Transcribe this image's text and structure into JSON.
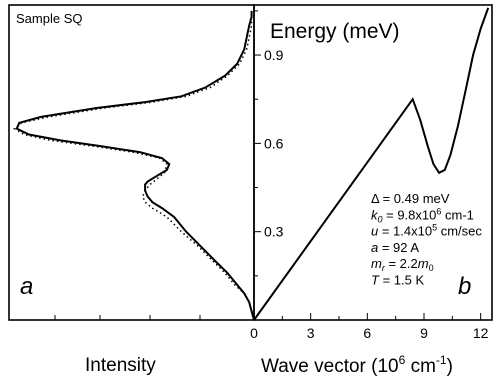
{
  "chart_data": [
    {
      "type": "line",
      "panel": "left",
      "sample_label": "Sample SQ",
      "panel_letter": "a",
      "xlabel": "Intensity",
      "ylabel": "",
      "ylim": [
        0.0,
        1.07
      ],
      "series": [
        {
          "style": "solid",
          "points": [
            [
              0.0,
              0.0
            ],
            [
              0.01,
              0.03
            ],
            [
              0.02,
              0.06
            ],
            [
              0.04,
              0.09
            ],
            [
              0.07,
              0.12
            ],
            [
              0.11,
              0.16
            ],
            [
              0.16,
              0.2
            ],
            [
              0.22,
              0.25
            ],
            [
              0.28,
              0.3
            ],
            [
              0.33,
              0.35
            ],
            [
              0.38,
              0.38
            ],
            [
              0.42,
              0.4
            ],
            [
              0.44,
              0.42
            ],
            [
              0.45,
              0.44
            ],
            [
              0.45,
              0.46
            ],
            [
              0.44,
              0.47
            ],
            [
              0.4,
              0.49
            ],
            [
              0.36,
              0.51
            ],
            [
              0.35,
              0.53
            ],
            [
              0.38,
              0.55
            ],
            [
              0.47,
              0.57
            ],
            [
              0.63,
              0.59
            ],
            [
              0.8,
              0.61
            ],
            [
              0.93,
              0.63
            ],
            [
              0.98,
              0.65
            ],
            [
              0.97,
              0.67
            ],
            [
              0.88,
              0.69
            ],
            [
              0.65,
              0.72
            ],
            [
              0.45,
              0.74
            ],
            [
              0.3,
              0.76
            ],
            [
              0.2,
              0.79
            ],
            [
              0.12,
              0.83
            ],
            [
              0.07,
              0.87
            ],
            [
              0.04,
              0.92
            ],
            [
              0.03,
              0.96
            ],
            [
              0.02,
              1.0
            ],
            [
              0.01,
              1.03
            ],
            [
              0.01,
              1.05
            ]
          ]
        },
        {
          "style": "dotted",
          "points": [
            [
              0.0,
              0.0
            ],
            [
              0.01,
              0.03
            ],
            [
              0.02,
              0.06
            ],
            [
              0.04,
              0.09
            ],
            [
              0.08,
              0.12
            ],
            [
              0.12,
              0.16
            ],
            [
              0.17,
              0.2
            ],
            [
              0.23,
              0.25
            ],
            [
              0.3,
              0.3
            ],
            [
              0.36,
              0.35
            ],
            [
              0.42,
              0.38
            ],
            [
              0.45,
              0.4
            ],
            [
              0.46,
              0.42
            ],
            [
              0.45,
              0.44
            ],
            [
              0.43,
              0.46
            ],
            [
              0.4,
              0.48
            ],
            [
              0.37,
              0.5
            ],
            [
              0.36,
              0.53
            ],
            [
              0.39,
              0.55
            ],
            [
              0.5,
              0.57
            ],
            [
              0.66,
              0.59
            ],
            [
              0.84,
              0.61
            ],
            [
              0.95,
              0.63
            ],
            [
              0.99,
              0.65
            ],
            [
              0.96,
              0.67
            ],
            [
              0.85,
              0.69
            ],
            [
              0.62,
              0.72
            ],
            [
              0.42,
              0.74
            ],
            [
              0.28,
              0.76
            ],
            [
              0.18,
              0.79
            ],
            [
              0.11,
              0.83
            ],
            [
              0.06,
              0.87
            ],
            [
              0.03,
              0.92
            ],
            [
              0.02,
              0.96
            ],
            [
              0.01,
              1.0
            ],
            [
              0.01,
              1.03
            ]
          ]
        }
      ]
    },
    {
      "type": "line",
      "panel": "right",
      "title": "Energy (meV)",
      "panel_letter": "b",
      "xlabel_main": "Wave vector (10",
      "xlabel_sup": "6",
      "xlabel_mid": " cm",
      "xlabel_sup2": "-1",
      "xlabel_end": ")",
      "xlim": [
        0,
        12.6
      ],
      "ylim": [
        0.0,
        1.07
      ],
      "xticks": [
        "0",
        "3",
        "6",
        "9",
        "12"
      ],
      "yticks": [
        "0.3",
        "0.6",
        "0.9"
      ],
      "series": [
        {
          "style": "solid",
          "points": [
            [
              0.0,
              0.0
            ],
            [
              8.4,
              0.75
            ],
            [
              8.8,
              0.68
            ],
            [
              9.2,
              0.59
            ],
            [
              9.5,
              0.53
            ],
            [
              9.8,
              0.5
            ],
            [
              10.1,
              0.51
            ],
            [
              10.4,
              0.56
            ],
            [
              10.8,
              0.66
            ],
            [
              11.2,
              0.78
            ],
            [
              11.6,
              0.9
            ],
            [
              12.0,
              0.99
            ],
            [
              12.4,
              1.06
            ]
          ]
        }
      ],
      "params": [
        {
          "pre": "",
          "sym": "Δ",
          "sub": "",
          "post": " = 0.49 meV",
          "sup": "",
          "tail": ""
        },
        {
          "pre": "",
          "sym": "k",
          "sub": "0",
          "post": " = 9.8x10",
          "sup": "6",
          "tail": " cm-1"
        },
        {
          "pre": "",
          "sym": "u",
          "sub": "",
          "post": " = 1.4x10",
          "sup": "5",
          "tail": " cm/sec"
        },
        {
          "pre": "",
          "sym": "a",
          "sub": "",
          "post": " = 92 A",
          "sup": "",
          "tail": ""
        },
        {
          "pre": "",
          "sym": "m",
          "sub": "r",
          "post": " = 2.2",
          "sup": "",
          "tail": ""
        },
        {
          "pre": "",
          "sym": "T",
          "sub": "",
          "post": " = 1.5 K",
          "sup": "",
          "tail": ""
        }
      ]
    }
  ]
}
